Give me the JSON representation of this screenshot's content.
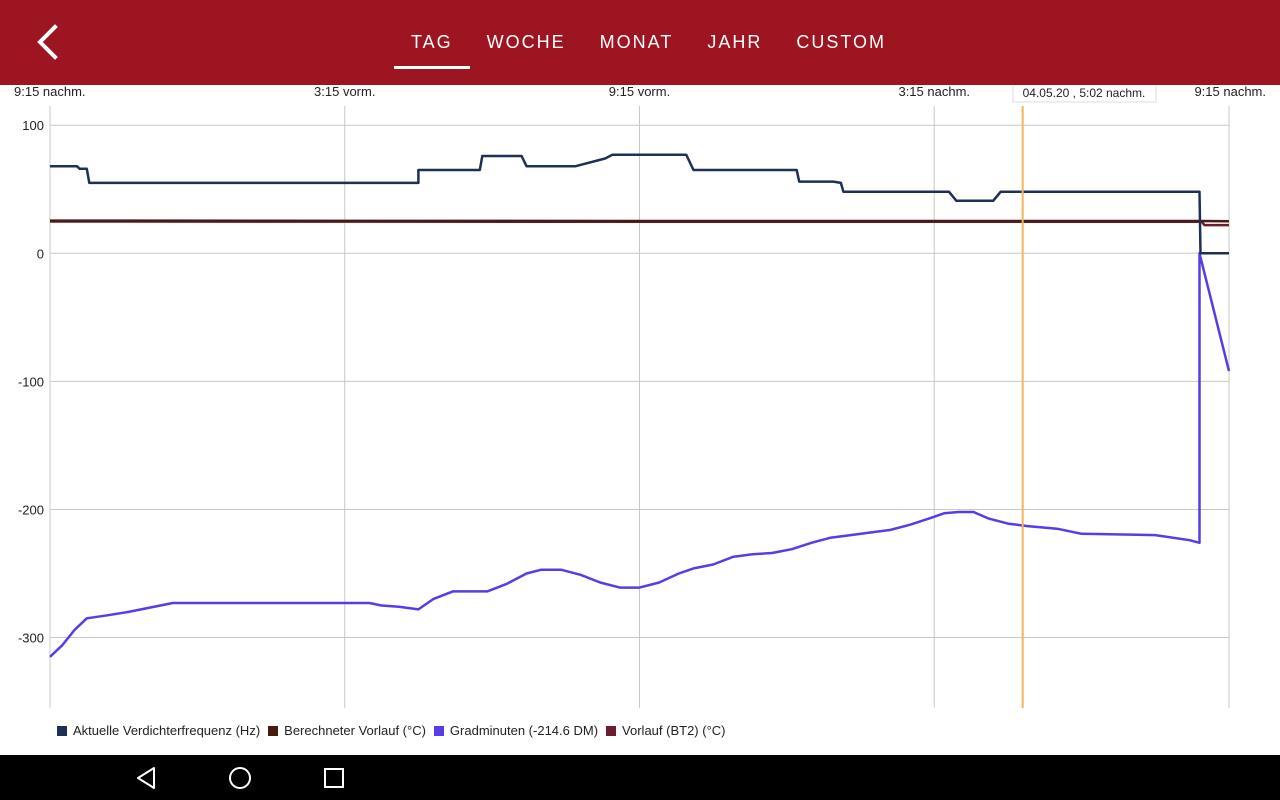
{
  "header": {
    "back_icon": "chevron-left-icon",
    "tabs": [
      {
        "label": "TAG",
        "active": true
      },
      {
        "label": "WOCHE",
        "active": false
      },
      {
        "label": "MONAT",
        "active": false
      },
      {
        "label": "JAHR",
        "active": false
      },
      {
        "label": "CUSTOM",
        "active": false
      }
    ]
  },
  "colors": {
    "brand": "#9e1522",
    "cursor_line": "#f5b35a"
  },
  "chart_data": {
    "type": "line",
    "x_unit": "hours since 9:15 nachm.",
    "x_ticks": [
      "9:15 nachm.",
      "3:15 vorm.",
      "9:15 vorm.",
      "3:15 nachm.",
      "9:15 nachm."
    ],
    "x_tick_hours": [
      0,
      6,
      12,
      18,
      24
    ],
    "xlim": [
      0,
      24
    ],
    "ylim": [
      -355,
      115
    ],
    "y_ticks": [
      100,
      0,
      -100,
      -200,
      -300
    ],
    "grid": true,
    "legend_position": "bottom",
    "cursor": {
      "x": 19.8,
      "label": "04.05.20 , 5:02 nachm."
    },
    "series": [
      {
        "name": "Aktuelle Verdichterfrequenz (Hz)",
        "color": "#1f2f55",
        "x": [
          0,
          0.55,
          0.6,
          0.75,
          0.8,
          7.5,
          7.5,
          8.75,
          8.8,
          9.6,
          9.7,
          10.6,
          10.7,
          11.3,
          11.45,
          12.95,
          13.1,
          14.0,
          14.05,
          15.2,
          15.25,
          15.9,
          15.95,
          16.1,
          16.15,
          17.15,
          17.2,
          18.3,
          18.45,
          19.2,
          19.35,
          23.4,
          23.42,
          24
        ],
        "y": [
          68,
          68,
          66,
          66,
          55,
          55,
          65,
          65,
          76,
          76,
          68,
          68,
          68,
          74,
          77,
          77,
          65,
          65,
          65,
          65,
          56,
          56,
          56,
          55,
          48,
          48,
          48,
          48,
          41,
          41,
          48,
          48,
          0,
          0
        ]
      },
      {
        "name": "Berechneter Vorlauf (°C)",
        "color": "#4a1a12",
        "x": [
          0,
          12,
          23.4,
          24
        ],
        "y": [
          25.5,
          25.2,
          25.2,
          25
        ]
      },
      {
        "name": "Gradminuten (-214.6 DM)",
        "color": "#5b3ae8",
        "x": [
          0,
          0.25,
          0.5,
          0.75,
          1.1,
          1.6,
          2.5,
          4.5,
          6.5,
          6.75,
          7.1,
          7.5,
          7.8,
          8.2,
          8.6,
          8.9,
          9.3,
          9.7,
          10.0,
          10.4,
          10.8,
          11.2,
          11.6,
          12.0,
          12.4,
          12.8,
          13.1,
          13.5,
          13.9,
          14.3,
          14.7,
          15.1,
          15.5,
          15.9,
          16.3,
          16.7,
          17.1,
          17.5,
          17.9,
          18.2,
          18.5,
          18.8,
          19.1,
          19.5,
          19.9,
          20.5,
          21.0,
          22.5,
          23.2,
          23.4,
          23.4,
          24
        ],
        "y": [
          -315,
          -306,
          -294,
          -285,
          -283,
          -280,
          -273,
          -273,
          -273,
          -275,
          -276,
          -278,
          -270,
          -264,
          -264,
          -264,
          -258,
          -250,
          -247,
          -247,
          -251,
          -257,
          -261,
          -261,
          -257,
          -250,
          -246,
          -243,
          -237,
          -235,
          -234,
          -231,
          -226,
          -222,
          -220,
          -218,
          -216,
          -212,
          -207,
          -203,
          -202,
          -202,
          -207,
          -211,
          -213,
          -215,
          -219,
          -220,
          -224,
          -226,
          0,
          -92
        ]
      },
      {
        "name": "Vorlauf (BT2) (°C)",
        "color": "#6b1d2e",
        "x": [
          0,
          12,
          23.45,
          23.5,
          24
        ],
        "y": [
          24.8,
          24.6,
          24.6,
          22,
          22
        ]
      }
    ]
  },
  "navbar": {
    "icons": [
      "back-triangle-icon",
      "home-circle-icon",
      "recents-square-icon"
    ]
  }
}
